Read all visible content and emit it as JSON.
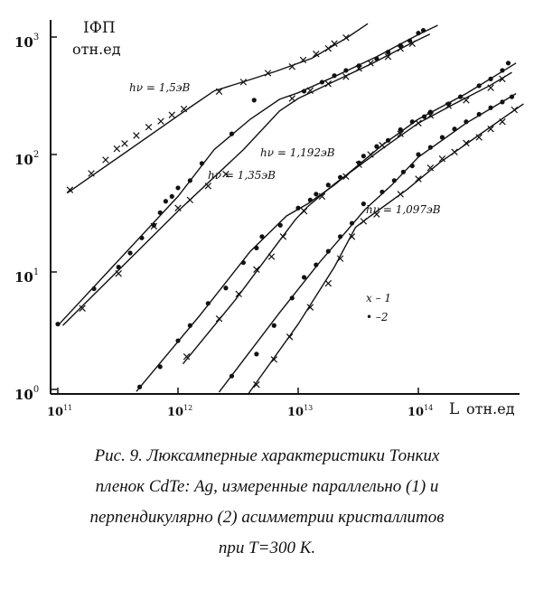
{
  "chart_data": {
    "type": "line",
    "y_axis_title": "IФП",
    "y_axis_unit": "отн.ед",
    "x_axis_title": "L",
    "x_axis_unit": "отн.ед",
    "x_scale": "log",
    "y_scale": "log",
    "xlim": [
      100000000000.0,
      750000000000000.0
    ],
    "ylim": [
      1,
      1400
    ],
    "x_ticks": [
      {
        "value": 100000000000.0,
        "mantissa": "10",
        "exp": "11"
      },
      {
        "value": 1000000000000.0,
        "mantissa": "10",
        "exp": "12"
      },
      {
        "value": 10000000000000.0,
        "mantissa": "10",
        "exp": "13"
      },
      {
        "value": 100000000000000.0,
        "mantissa": "10",
        "exp": "14"
      }
    ],
    "y_ticks": [
      {
        "value": 1,
        "mantissa": "10",
        "exp": "0"
      },
      {
        "value": 10,
        "mantissa": "10",
        "exp": "1"
      },
      {
        "value": 100,
        "mantissa": "10",
        "exp": "2"
      },
      {
        "value": 1000,
        "mantissa": "10",
        "exp": "3"
      }
    ],
    "legend": {
      "placement": "right",
      "items": [
        {
          "marker": "x",
          "label": "x – 1"
        },
        {
          "marker": "dot",
          "label": "• –2"
        }
      ]
    },
    "curve_labels": [
      {
        "text": "hν = 1,5эВ"
      },
      {
        "text": "hν = 1,35эВ"
      },
      {
        "text": "hν = 1,192эВ"
      },
      {
        "text": "hν = 1,097эВ"
      }
    ],
    "series": [
      {
        "curve": "hν = 1,5эВ",
        "set": "1",
        "marker": "x",
        "points": [
          [
            126000000000.0,
            50
          ],
          [
            190000000000.0,
            69
          ],
          [
            250000000000.0,
            90
          ],
          [
            310000000000.0,
            112
          ],
          [
            360000000000.0,
            124
          ],
          [
            450000000000.0,
            145
          ],
          [
            570000000000.0,
            171
          ],
          [
            720000000000.0,
            192
          ],
          [
            890000000000.0,
            217
          ],
          [
            1120000000000.0,
            244
          ],
          [
            2200000000000.0,
            344
          ],
          [
            3500000000000.0,
            414
          ],
          [
            5600000000000.0,
            493
          ],
          [
            8900000000000.0,
            560
          ],
          [
            11000000000000.0,
            637
          ],
          [
            14100000000000.0,
            717
          ],
          [
            17800000000000.0,
            800
          ],
          [
            20000000000000.0,
            880
          ],
          [
            25000000000000.0,
            988
          ]
        ],
        "fit": [
          [
            120000000000.0,
            47
          ],
          [
            1300000000000.0,
            258
          ],
          [
            2000000000000.0,
            348
          ],
          [
            3600000000000.0,
            420
          ],
          [
            6500000000000.0,
            510
          ],
          [
            13000000000000.0,
            660
          ],
          [
            26000000000000.0,
            1000
          ],
          [
            38000000000000.0,
            1300
          ]
        ]
      },
      {
        "curve": "hν = 1,35эВ",
        "set": "1",
        "marker": "x",
        "points": [
          [
            160000000000.0,
            4.9
          ],
          [
            320000000000.0,
            9.7
          ],
          [
            630000000000.0,
            24.5
          ],
          [
            1000000000000.0,
            35
          ],
          [
            1260000000000.0,
            41
          ],
          [
            1780000000000.0,
            54
          ],
          [
            2500000000000.0,
            68
          ],
          [
            8900000000000.0,
            300
          ],
          [
            12600000000000.0,
            350
          ],
          [
            17800000000000.0,
            400
          ],
          [
            25000000000000.0,
            460
          ],
          [
            32000000000000.0,
            540
          ],
          [
            40000000000000.0,
            600
          ],
          [
            56000000000000.0,
            680
          ],
          [
            71000000000000.0,
            800
          ],
          [
            89000000000000.0,
            880
          ]
        ],
        "fit": [
          [
            110000000000.0,
            3.5
          ],
          [
            1000000000000.0,
            33
          ],
          [
            3500000000000.0,
            110
          ],
          [
            7000000000000.0,
            235
          ],
          [
            10000000000000.0,
            300
          ],
          [
            20000000000000.0,
            420
          ],
          [
            42000000000000.0,
            600
          ],
          [
            90000000000000.0,
            900
          ],
          [
            125000000000000.0,
            1060
          ]
        ]
      },
      {
        "curve": "hν = 1,35эВ",
        "set": "2",
        "marker": "dot",
        "points": [
          [
            100000000000.0,
            3.6
          ],
          [
            200000000000.0,
            7.2
          ],
          [
            320000000000.0,
            11
          ],
          [
            400000000000.0,
            14.5
          ],
          [
            500000000000.0,
            19.5
          ],
          [
            630000000000.0,
            25
          ],
          [
            710000000000.0,
            32
          ],
          [
            790000000000.0,
            40
          ],
          [
            890000000000.0,
            44
          ],
          [
            1000000000000.0,
            52
          ],
          [
            1260000000000.0,
            60
          ],
          [
            1580000000000.0,
            84
          ],
          [
            2800000000000.0,
            150
          ],
          [
            4300000000000.0,
            290
          ],
          [
            11200000000000.0,
            346
          ],
          [
            15800000000000.0,
            413
          ],
          [
            20000000000000.0,
            469
          ],
          [
            25000000000000.0,
            520
          ],
          [
            32000000000000.0,
            570
          ],
          [
            45000000000000.0,
            654
          ],
          [
            56000000000000.0,
            745
          ],
          [
            71000000000000.0,
            850
          ],
          [
            85000000000000.0,
            930
          ],
          [
            100000000000000.0,
            1080
          ],
          [
            110000000000000.0,
            1140
          ]
        ],
        "fit": [
          [
            100000000000.0,
            3.5
          ],
          [
            1000000000000.0,
            44
          ],
          [
            2000000000000.0,
            110
          ],
          [
            4000000000000.0,
            200
          ],
          [
            7000000000000.0,
            295
          ],
          [
            10000000000000.0,
            335
          ],
          [
            20000000000000.0,
            460
          ],
          [
            45000000000000.0,
            680
          ],
          [
            100000000000000.0,
            1050
          ],
          [
            145000000000000.0,
            1260
          ]
        ]
      },
      {
        "curve": "hν = 1,192эВ",
        "set": "1",
        "marker": "x",
        "points": [
          [
            1180000000000.0,
            1.9
          ],
          [
            2200000000000.0,
            4.0
          ],
          [
            3200000000000.0,
            6.5
          ],
          [
            4500000000000.0,
            10.5
          ],
          [
            6000000000000.0,
            13.5
          ],
          [
            7500000000000.0,
            20
          ],
          [
            11200000000000.0,
            33
          ],
          [
            15800000000000.0,
            44
          ],
          [
            25000000000000.0,
            65
          ],
          [
            32000000000000.0,
            82
          ],
          [
            40000000000000.0,
            100
          ],
          [
            50000000000000.0,
            120
          ],
          [
            71000000000000.0,
            150
          ],
          [
            100000000000000.0,
            185
          ],
          [
            126000000000000.0,
            215
          ],
          [
            178000000000000.0,
            260
          ],
          [
            250000000000000.0,
            290
          ],
          [
            400000000000000.0,
            370
          ],
          [
            500000000000000.0,
            440
          ]
        ],
        "fit": [
          [
            1100000000000.0,
            1.65
          ],
          [
            3000000000000.0,
            5.8
          ],
          [
            7000000000000.0,
            18.5
          ],
          [
            9500000000000.0,
            28
          ],
          [
            12000000000000.0,
            36
          ],
          [
            20000000000000.0,
            56
          ],
          [
            50000000000000.0,
            112
          ],
          [
            100000000000000.0,
            185
          ],
          [
            200000000000000.0,
            270
          ],
          [
            400000000000000.0,
            390
          ],
          [
            600000000000000.0,
            500
          ]
        ]
      },
      {
        "curve": "hν = 1,192эВ",
        "set": "2",
        "marker": "dot",
        "points": [
          [
            480000000000.0,
            1.05
          ],
          [
            710000000000.0,
            1.56
          ],
          [
            1000000000000.0,
            2.6
          ],
          [
            1260000000000.0,
            3.5
          ],
          [
            1780000000000.0,
            5.4
          ],
          [
            2500000000000.0,
            7.3
          ],
          [
            3500000000000.0,
            12
          ],
          [
            4500000000000.0,
            16
          ],
          [
            5000000000000.0,
            20
          ],
          [
            7100000000000.0,
            25
          ],
          [
            10000000000000.0,
            35
          ],
          [
            12600000000000.0,
            41
          ],
          [
            14100000000000.0,
            46
          ],
          [
            17800000000000.0,
            55
          ],
          [
            22400000000000.0,
            64
          ],
          [
            32000000000000.0,
            85
          ],
          [
            35000000000000.0,
            97
          ],
          [
            45000000000000.0,
            117
          ],
          [
            56000000000000.0,
            132
          ],
          [
            71000000000000.0,
            163
          ],
          [
            89000000000000.0,
            190
          ],
          [
            112000000000000.0,
            210
          ],
          [
            126000000000000.0,
            230
          ],
          [
            178000000000000.0,
            270
          ],
          [
            224000000000000.0,
            310
          ],
          [
            320000000000000.0,
            385
          ],
          [
            400000000000000.0,
            440
          ],
          [
            500000000000000.0,
            520
          ],
          [
            560000000000000.0,
            600
          ]
        ],
        "fit": [
          [
            450000000000.0,
            0.96
          ],
          [
            1500000000000.0,
            4.2
          ],
          [
            4000000000000.0,
            15
          ],
          [
            8000000000000.0,
            30
          ],
          [
            12000000000000.0,
            38
          ],
          [
            20000000000000.0,
            55
          ],
          [
            50000000000000.0,
            120
          ],
          [
            100000000000000.0,
            200
          ],
          [
            250000000000000.0,
            330
          ],
          [
            650000000000000.0,
            600
          ]
        ]
      },
      {
        "curve": "hν = 1,097эВ",
        "set": "1",
        "marker": "x",
        "points": [
          [
            4500000000000.0,
            1.1
          ],
          [
            6300000000000.0,
            1.8
          ],
          [
            8500000000000.0,
            2.8
          ],
          [
            12600000000000.0,
            5.0
          ],
          [
            17800000000000.0,
            8.0
          ],
          [
            22400000000000.0,
            13
          ],
          [
            28000000000000.0,
            20
          ],
          [
            35000000000000.0,
            27
          ],
          [
            45000000000000.0,
            31
          ],
          [
            71000000000000.0,
            46
          ],
          [
            100000000000000.0,
            62
          ],
          [
            126000000000000.0,
            77
          ],
          [
            158000000000000.0,
            92
          ],
          [
            200000000000000.0,
            105
          ],
          [
            250000000000000.0,
            125
          ],
          [
            320000000000000.0,
            140
          ],
          [
            400000000000000.0,
            165
          ],
          [
            500000000000000.0,
            190
          ],
          [
            630000000000000.0,
            240
          ]
        ],
        "fit": [
          [
            3800000000000.0,
            0.9
          ],
          [
            10000000000000.0,
            3.6
          ],
          [
            20000000000000.0,
            11
          ],
          [
            30000000000000.0,
            24
          ],
          [
            40000000000000.0,
            30
          ],
          [
            80000000000000.0,
            50
          ],
          [
            150000000000000.0,
            85
          ],
          [
            300000000000000.0,
            140
          ],
          [
            750000000000000.0,
            270
          ]
        ]
      },
      {
        "curve": "hν = 1,097эВ",
        "set": "2",
        "marker": "dot",
        "points": [
          [
            2800000000000.0,
            1.3
          ],
          [
            4500000000000.0,
            2.0
          ],
          [
            6300000000000.0,
            3.5
          ],
          [
            8900000000000.0,
            6.0
          ],
          [
            11200000000000.0,
            9.0
          ],
          [
            14100000000000.0,
            11.5
          ],
          [
            17800000000000.0,
            15
          ],
          [
            22400000000000.0,
            20
          ],
          [
            28000000000000.0,
            26
          ],
          [
            35000000000000.0,
            38
          ],
          [
            50000000000000.0,
            48
          ],
          [
            63000000000000.0,
            60
          ],
          [
            75000000000000.0,
            71
          ],
          [
            89000000000000.0,
            80
          ],
          [
            100000000000000.0,
            100
          ],
          [
            126000000000000.0,
            115
          ],
          [
            158000000000000.0,
            140
          ],
          [
            200000000000000.0,
            165
          ],
          [
            250000000000000.0,
            190
          ],
          [
            320000000000000.0,
            220
          ],
          [
            400000000000000.0,
            250
          ],
          [
            500000000000000.0,
            280
          ],
          [
            600000000000000.0,
            310
          ]
        ],
        "fit": [
          [
            2200000000000.0,
            0.95
          ],
          [
            7000000000000.0,
            4.5
          ],
          [
            15000000000000.0,
            12
          ],
          [
            25000000000000.0,
            22
          ],
          [
            36000000000000.0,
            34
          ],
          [
            60000000000000.0,
            55
          ],
          [
            100000000000000.0,
            95
          ],
          [
            250000000000000.0,
            185
          ],
          [
            650000000000000.0,
            330
          ]
        ]
      }
    ]
  },
  "caption": {
    "lines": [
      "Рис. 9. Люксамперные характеристики Тонких",
      "пленок CdTe: Ag, измеренные параллельно (1) и",
      "перпендикулярно (2) асимметрии кристаллитов",
      "при T=300 K."
    ]
  }
}
